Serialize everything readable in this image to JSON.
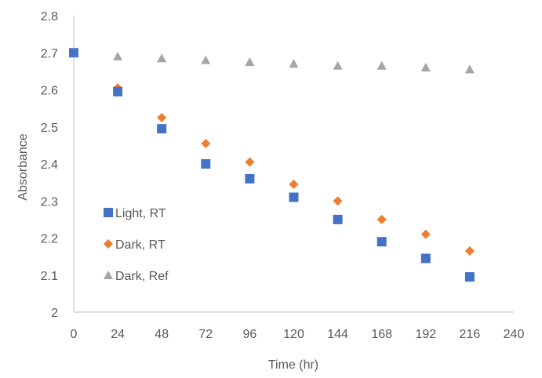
{
  "chart_data": {
    "type": "scatter",
    "title": "",
    "xlabel": "Time (hr)",
    "ylabel": "Absorbance",
    "xlim": [
      0,
      240
    ],
    "ylim": [
      2,
      2.8
    ],
    "x_ticks": [
      "0",
      "24",
      "48",
      "72",
      "96",
      "120",
      "144",
      "168",
      "192",
      "216",
      "240"
    ],
    "y_ticks": [
      "2",
      "2.1",
      "2.2",
      "2.3",
      "2.4",
      "2.5",
      "2.6",
      "2.7",
      "2.8"
    ],
    "grid": false,
    "legend_position": "left-inside",
    "series": [
      {
        "name": "Light, RT",
        "marker": "square",
        "color": "#4472C4",
        "x": [
          0,
          24,
          48,
          72,
          96,
          120,
          144,
          168,
          192,
          216
        ],
        "y": [
          2.7,
          2.595,
          2.495,
          2.4,
          2.36,
          2.31,
          2.25,
          2.19,
          2.145,
          2.095
        ]
      },
      {
        "name": "Dark, RT",
        "marker": "diamond",
        "color": "#ED7D31",
        "x": [
          0,
          24,
          48,
          72,
          96,
          120,
          144,
          168,
          192,
          216
        ],
        "y": [
          2.7,
          2.605,
          2.525,
          2.455,
          2.405,
          2.345,
          2.3,
          2.25,
          2.21,
          2.165
        ]
      },
      {
        "name": "Dark, Ref",
        "marker": "triangle",
        "color": "#A5A5A5",
        "x": [
          0,
          24,
          48,
          72,
          96,
          120,
          144,
          168,
          192,
          216
        ],
        "y": [
          2.7,
          2.69,
          2.685,
          2.68,
          2.675,
          2.67,
          2.665,
          2.665,
          2.66,
          2.655
        ]
      }
    ]
  }
}
